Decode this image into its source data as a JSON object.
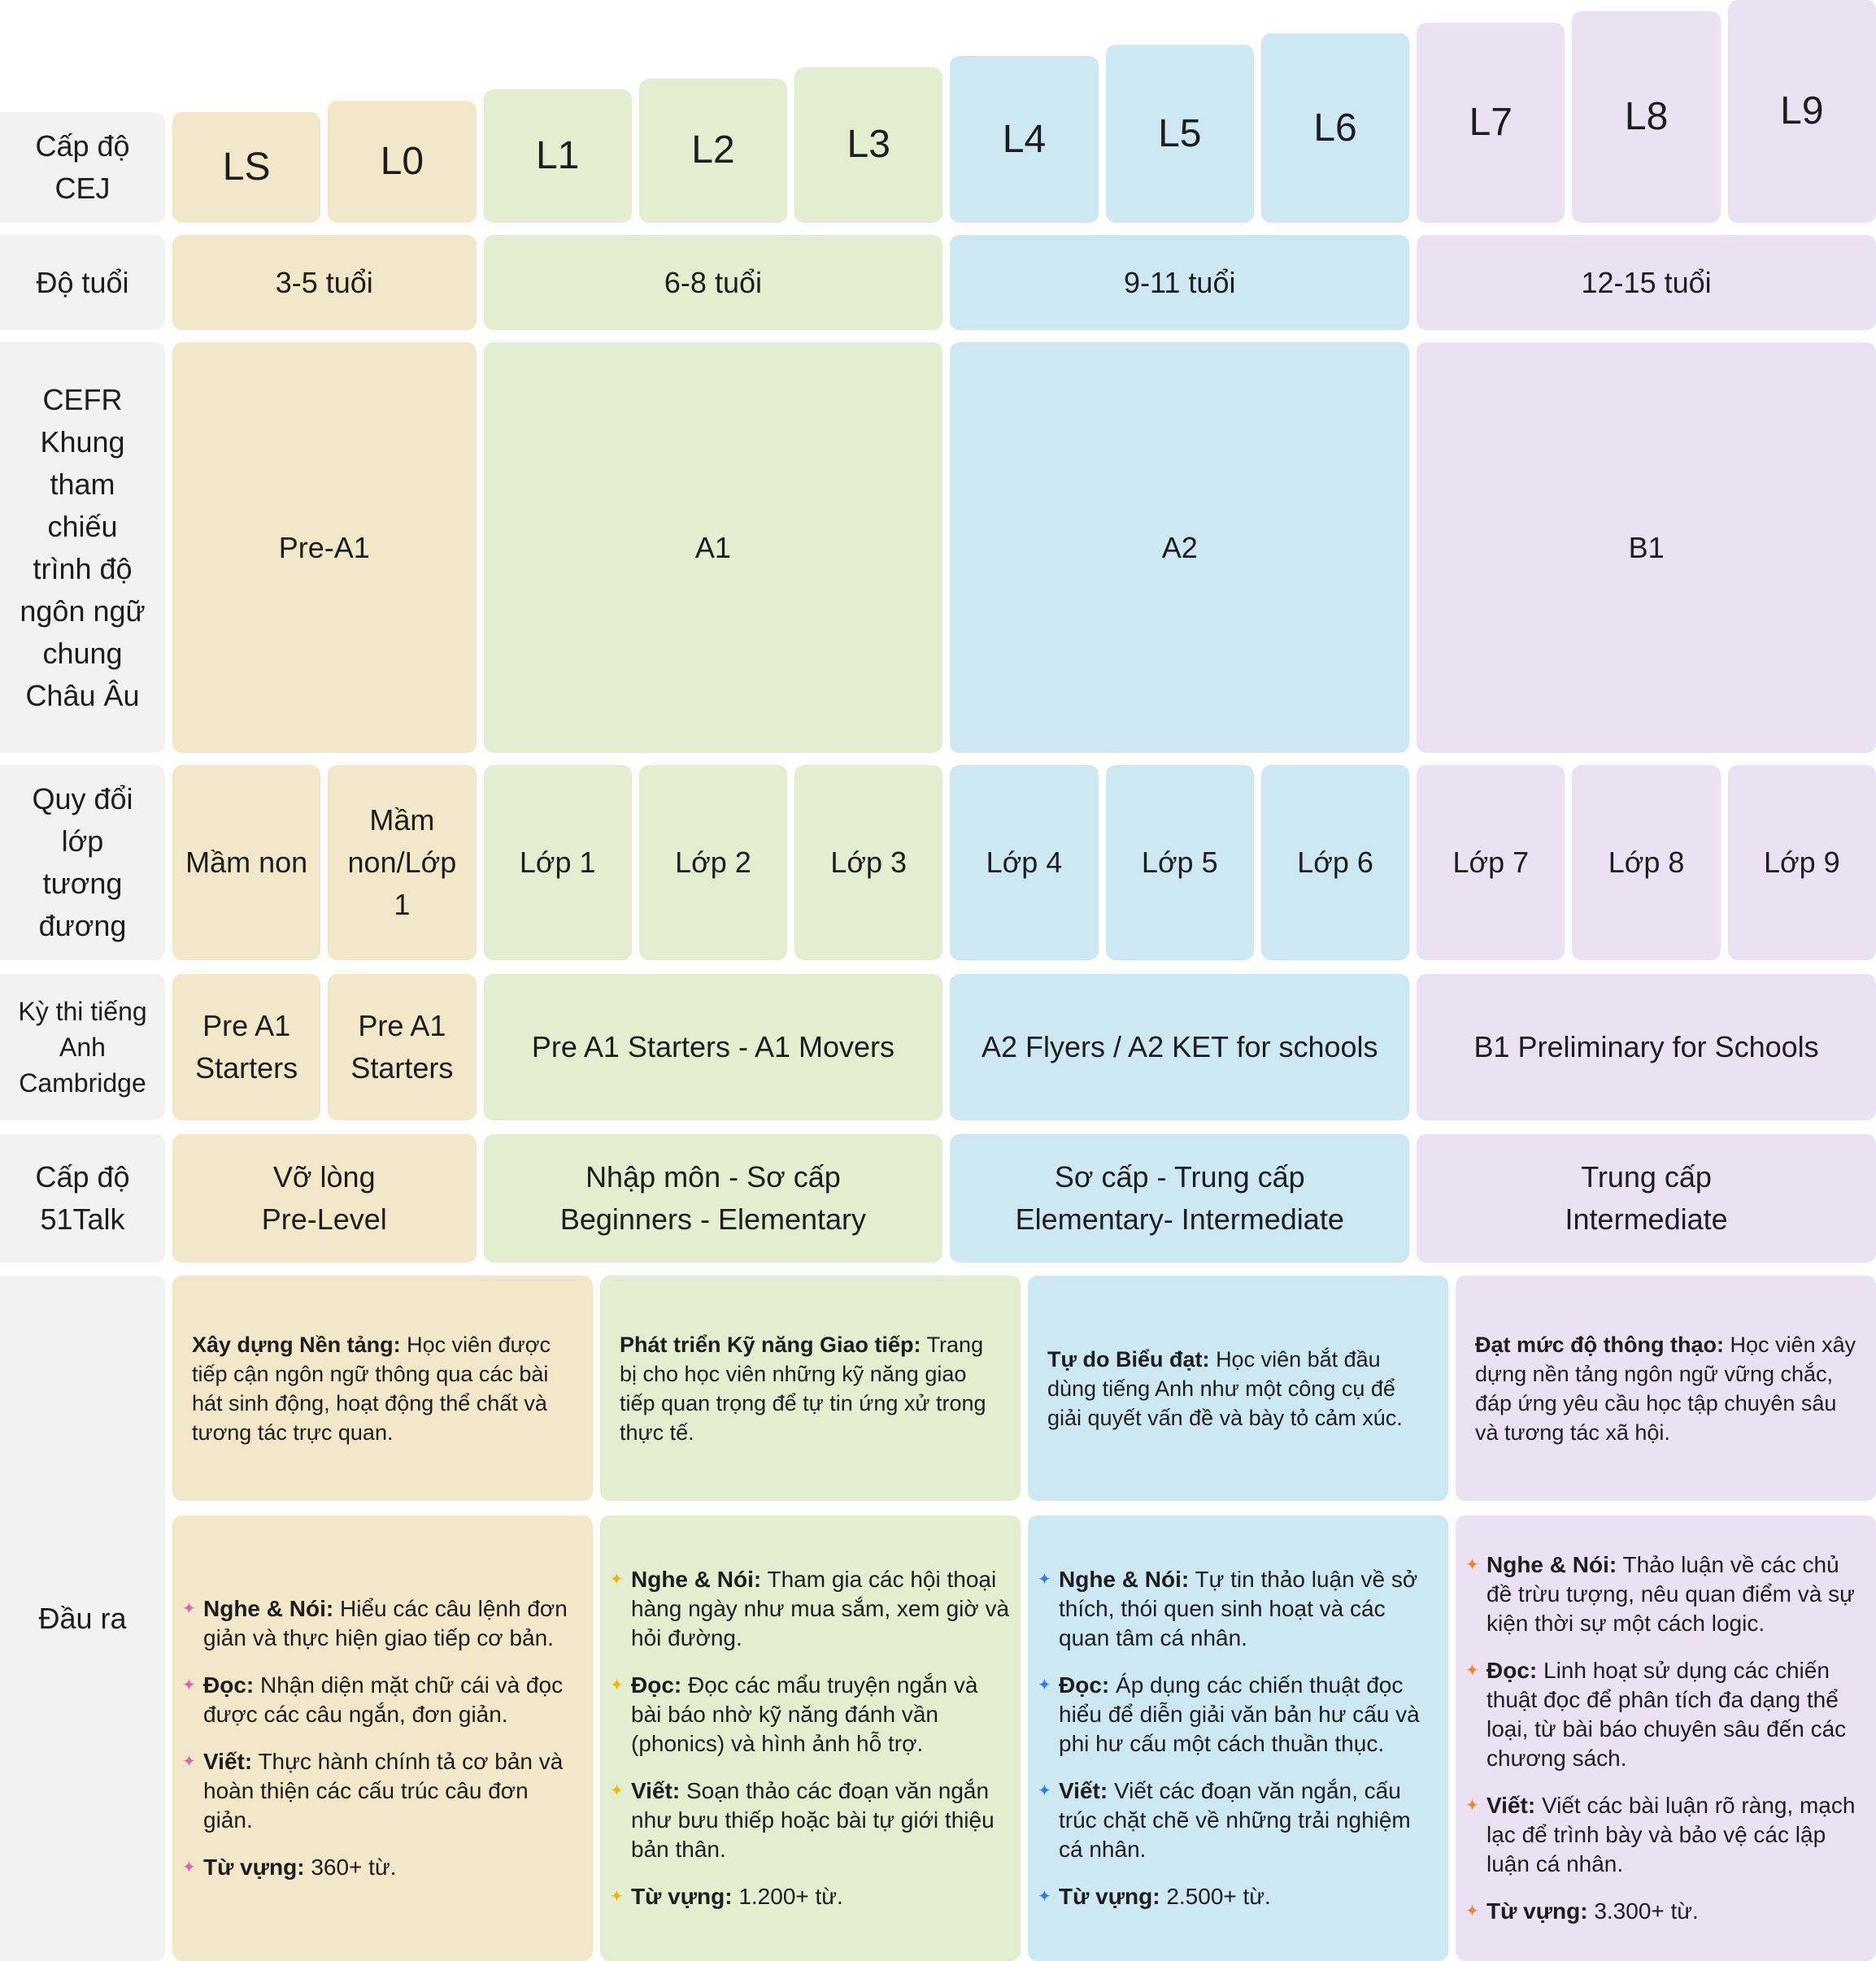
{
  "colors": {
    "beige": "#f3e7c9",
    "green": "#e3edcf",
    "blue": "#cde8f3",
    "purple": "#ebe1f3",
    "label": "#f2f2f2"
  },
  "bullet_colors": {
    "beige": "#e05fb4",
    "green": "#f5b400",
    "blue": "#2f7fe0",
    "purple": "#f5802e"
  },
  "header": {
    "label": "Cấp độ CEJ",
    "levels": [
      {
        "text": "LS",
        "group": "beige"
      },
      {
        "text": "L0",
        "group": "beige"
      },
      {
        "text": "L1",
        "group": "green"
      },
      {
        "text": "L2",
        "group": "green"
      },
      {
        "text": "L3",
        "group": "green"
      },
      {
        "text": "L4",
        "group": "blue"
      },
      {
        "text": "L5",
        "group": "blue"
      },
      {
        "text": "L6",
        "group": "blue"
      },
      {
        "text": "L7",
        "group": "purple"
      },
      {
        "text": "L8",
        "group": "purple"
      },
      {
        "text": "L9",
        "group": "purple"
      }
    ]
  },
  "rows": [
    {
      "key": "age",
      "label": "Độ tuổi",
      "cells": [
        {
          "text": "3-5 tuổi",
          "span": 2,
          "group": "beige"
        },
        {
          "text": "6-8 tuổi",
          "span": 3,
          "group": "green"
        },
        {
          "text": "9-11 tuổi",
          "span": 3,
          "group": "blue"
        },
        {
          "text": "12-15 tuổi",
          "span": 3,
          "group": "purple"
        }
      ]
    },
    {
      "key": "cefr",
      "label": "CEFR Khung tham chiếu trình độ ngôn ngữ chung Châu Âu",
      "cells": [
        {
          "text": "Pre-A1",
          "span": 2,
          "group": "beige"
        },
        {
          "text": "A1",
          "span": 3,
          "group": "green"
        },
        {
          "text": "A2",
          "span": 3,
          "group": "blue"
        },
        {
          "text": "B1",
          "span": 3,
          "group": "purple"
        }
      ]
    },
    {
      "key": "grade",
      "label": "Quy đổi lớp tương đương",
      "cells": [
        {
          "text": "Mầm non",
          "span": 1,
          "group": "beige"
        },
        {
          "text": "Mầm non/Lớp 1",
          "span": 1,
          "group": "beige"
        },
        {
          "text": "Lớp 1",
          "span": 1,
          "group": "green"
        },
        {
          "text": "Lớp 2",
          "span": 1,
          "group": "green"
        },
        {
          "text": "Lớp 3",
          "span": 1,
          "group": "green"
        },
        {
          "text": "Lớp 4",
          "span": 1,
          "group": "blue"
        },
        {
          "text": "Lớp 5",
          "span": 1,
          "group": "blue"
        },
        {
          "text": "Lớp 6",
          "span": 1,
          "group": "blue"
        },
        {
          "text": "Lớp 7",
          "span": 1,
          "group": "purple"
        },
        {
          "text": "Lớp 8",
          "span": 1,
          "group": "purple"
        },
        {
          "text": "Lớp 9",
          "span": 1,
          "group": "purple"
        }
      ]
    },
    {
      "key": "exam",
      "label": "Kỳ thi tiếng Anh Cambridge",
      "cells": [
        {
          "text": "Pre A1 Starters",
          "span": 1,
          "group": "beige"
        },
        {
          "text": "Pre A1 Starters",
          "span": 1,
          "group": "beige"
        },
        {
          "text": "Pre A1 Starters - A1 Movers",
          "span": 3,
          "group": "green"
        },
        {
          "text": "A2 Flyers / A2 KET for schools",
          "span": 3,
          "group": "blue"
        },
        {
          "text": "B1 Preliminary for Schools",
          "span": 3,
          "group": "purple"
        }
      ]
    },
    {
      "key": "talk",
      "label": "Cấp độ 51Talk",
      "cells": [
        {
          "text": "Vỡ lòng\nPre-Level",
          "span": 2,
          "group": "beige"
        },
        {
          "text": "Nhập môn - Sơ cấp\nBeginners - Elementary",
          "span": 3,
          "group": "green"
        },
        {
          "text": "Sơ cấp - Trung cấp\nElementary- Intermediate",
          "span": 3,
          "group": "blue"
        },
        {
          "text": "Trung cấp\nIntermediate",
          "span": 3,
          "group": "purple"
        }
      ]
    }
  ],
  "outcomes": {
    "label": "Đầu ra",
    "columns": [
      {
        "group": "beige",
        "desc_bold": "Xây dựng Nền tảng:",
        "desc": "Học viên được tiếp cận ngôn ngữ thông qua các bài hát sinh động, hoạt động thể chất và tương tác trực quan.",
        "items": [
          {
            "bold": "Nghe & Nói:",
            "text": "Hiểu các câu lệnh đơn giản và thực hiện giao tiếp cơ bản."
          },
          {
            "bold": "Đọc:",
            "text": "Nhận diện mặt chữ cái và đọc được các câu ngắn, đơn giản."
          },
          {
            "bold": "Viết:",
            "text": "Thực hành chính tả cơ bản và hoàn thiện các cấu trúc câu đơn giản."
          },
          {
            "bold": "Từ vựng:",
            "text": "360+ từ."
          }
        ]
      },
      {
        "group": "green",
        "desc_bold": "Phát triển Kỹ năng Giao tiếp:",
        "desc": "Trang bị cho học viên những kỹ năng giao tiếp quan trọng để tự tin ứng xử trong thực tế.",
        "items": [
          {
            "bold": "Nghe & Nói:",
            "text": "Tham gia các hội thoại hàng ngày như mua sắm, xem giờ và hỏi đường."
          },
          {
            "bold": "Đọc:",
            "text": "Đọc các mẩu truyện ngắn và bài báo nhờ kỹ năng đánh vần (phonics) và hình ảnh hỗ trợ."
          },
          {
            "bold": "Viết:",
            "text": "Soạn thảo các đoạn văn ngắn như bưu thiếp hoặc bài tự giới thiệu bản thân."
          },
          {
            "bold": "Từ vựng:",
            "text": "1.200+ từ."
          }
        ]
      },
      {
        "group": "blue",
        "desc_bold": "Tự do Biểu đạt:",
        "desc": "Học viên bắt đầu dùng tiếng Anh như một công cụ để giải quyết vấn đề và bày tỏ cảm xúc.",
        "items": [
          {
            "bold": "Nghe & Nói:",
            "text": "Tự tin thảo luận về sở thích, thói quen sinh hoạt và các quan tâm cá nhân."
          },
          {
            "bold": "Đọc:",
            "text": "Áp dụng các chiến thuật đọc hiểu để diễn giải văn bản hư cấu và phi hư cấu một cách thuần thục."
          },
          {
            "bold": "Viết:",
            "text": "Viết các đoạn văn ngắn, cấu trúc chặt chẽ về những trải nghiệm cá nhân."
          },
          {
            "bold": "Từ vựng:",
            "text": "2.500+ từ."
          }
        ]
      },
      {
        "group": "purple",
        "desc_bold": "Đạt mức độ thông thạo:",
        "desc": "Học viên xây dựng nền tảng ngôn ngữ vững chắc, đáp ứng yêu cầu học tập chuyên sâu và tương tác xã hội.",
        "items": [
          {
            "bold": "Nghe & Nói:",
            "text": "Thảo luận về các chủ đề trừu tượng, nêu quan điểm và sự kiện thời sự một cách logic."
          },
          {
            "bold": "Đọc:",
            "text": "Linh hoạt sử dụng các chiến thuật đọc để phân tích đa dạng thể loại, từ bài báo chuyên sâu đến các chương sách."
          },
          {
            "bold": "Viết:",
            "text": "Viết các bài luận rõ ràng, mạch lạc để trình bày và bảo vệ các lập luận cá nhân."
          },
          {
            "bold": "Từ vựng:",
            "text": "3.300+ từ."
          }
        ]
      }
    ]
  }
}
